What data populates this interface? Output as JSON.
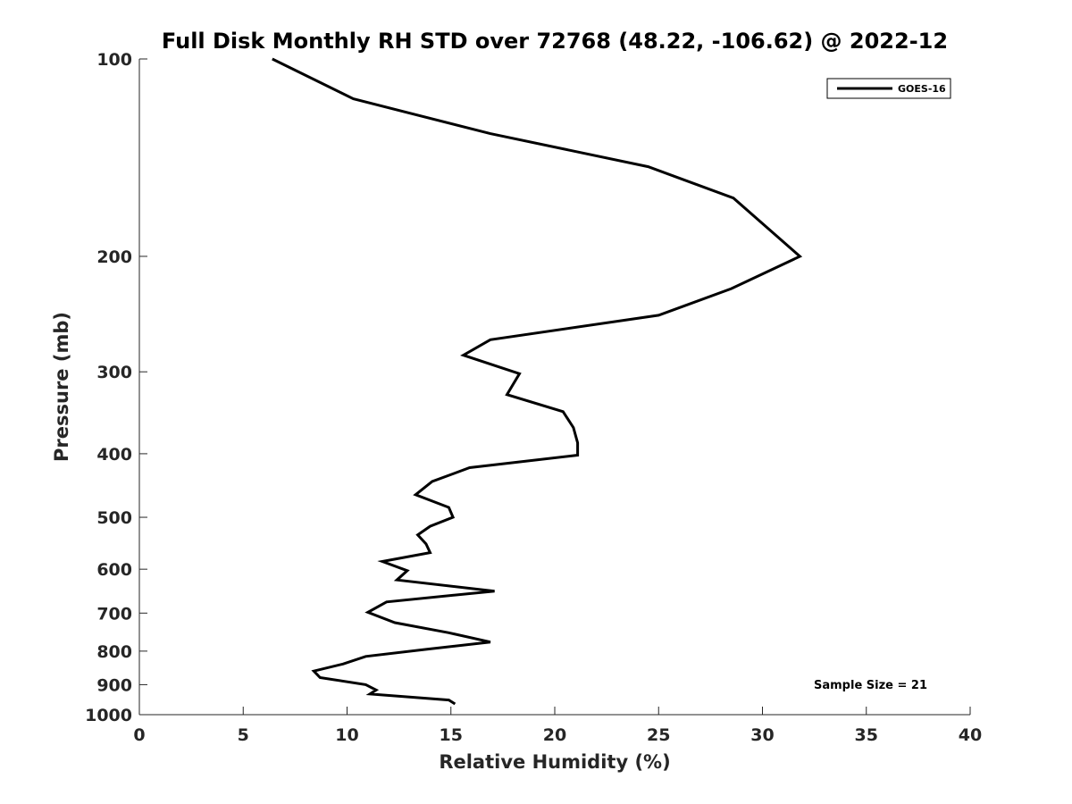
{
  "chart_data": {
    "type": "line",
    "title": "Full Disk Monthly RH STD over 72768 (48.22, -106.62) @ 2022-12",
    "xlabel": "Relative Humidity (%)",
    "ylabel": "Pressure (mb)",
    "xlim": [
      0,
      40
    ],
    "ylim": [
      1000,
      100
    ],
    "yscale": "log",
    "y_reversed": true,
    "xticks": [
      0,
      5,
      10,
      15,
      20,
      25,
      30,
      35,
      40
    ],
    "yticks": [
      100,
      200,
      300,
      400,
      500,
      600,
      700,
      800,
      900,
      1000
    ],
    "grid": false,
    "legend": "top-right",
    "series": [
      {
        "name": "GOES-16",
        "color": "#000000",
        "x": [
          6.4,
          10.3,
          16.9,
          24.5,
          28.6,
          31.8,
          28.5,
          25.0,
          16.9,
          15.6,
          18.3,
          17.7,
          20.4,
          20.9,
          21.1,
          21.1,
          15.9,
          14.1,
          13.3,
          14.9,
          15.1,
          14.0,
          13.4,
          13.8,
          14.0,
          11.7,
          12.9,
          12.4,
          17.1,
          11.9,
          11.0,
          12.3,
          14.9,
          16.9,
          13.8,
          10.9,
          9.8,
          8.4,
          8.7,
          10.9,
          11.4,
          11.1,
          14.9,
          15.2
        ],
        "y": [
          100,
          115,
          130,
          146,
          163,
          200,
          224,
          246,
          268,
          283,
          302,
          325,
          345,
          365,
          385,
          402,
          420,
          441,
          462,
          483,
          500,
          516,
          532,
          549,
          566,
          584,
          603,
          623,
          648,
          673,
          698,
          724,
          750,
          775,
          795,
          815,
          837,
          858,
          878,
          900,
          917,
          930,
          950,
          963
        ]
      }
    ],
    "annotations": [
      "Sample Size = 21"
    ]
  }
}
